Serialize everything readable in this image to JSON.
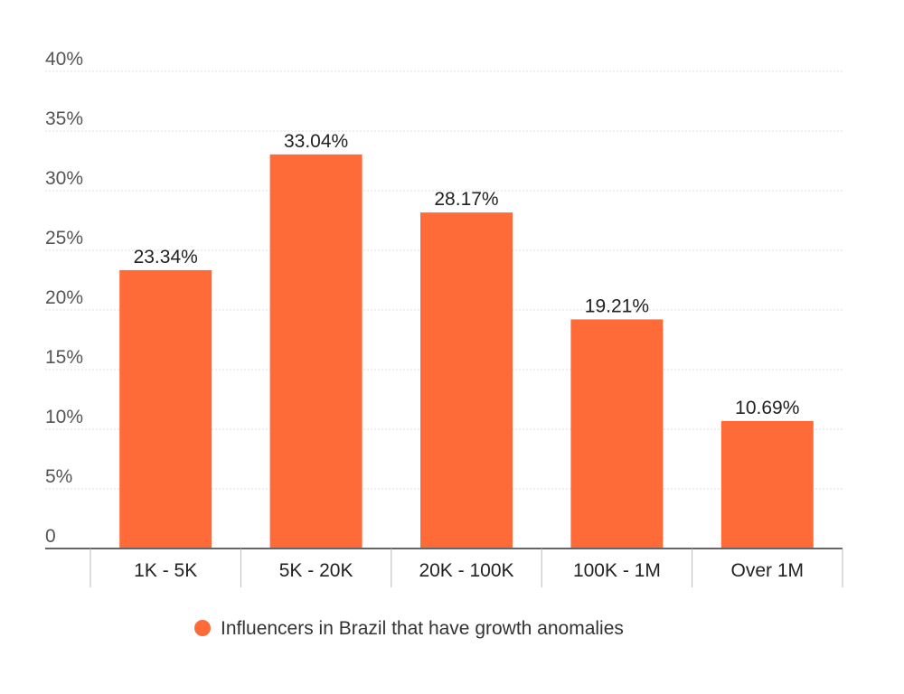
{
  "chart_data": {
    "type": "bar",
    "title": "",
    "xlabel": "",
    "ylabel": "",
    "categories": [
      "1K - 5K",
      "5K - 20K",
      "20K - 100K",
      "100K - 1M",
      "Over 1M"
    ],
    "series": [
      {
        "name": "Influencers in Brazil that have growth anomalies",
        "values": [
          23.34,
          33.04,
          28.17,
          19.21,
          10.69
        ],
        "labels": [
          "23.34%",
          "33.04%",
          "28.17%",
          "19.21%",
          "10.69%"
        ],
        "color": "#ff6a39"
      }
    ],
    "ylim": [
      0,
      40
    ],
    "yticks": [
      0,
      5,
      10,
      15,
      20,
      25,
      30,
      35,
      40
    ],
    "ytick_labels": [
      "0",
      "5%",
      "10%",
      "15%",
      "20%",
      "25%",
      "30%",
      "35%",
      "40%"
    ],
    "grid": true,
    "legend_position": "bottom"
  },
  "legend": {
    "label": "Influencers in Brazil that have growth anomalies",
    "color": "#ff6a39"
  }
}
